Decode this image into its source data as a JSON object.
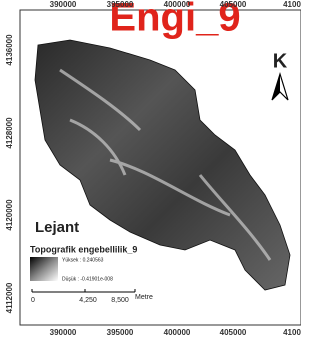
{
  "title": "Engi_9",
  "north": "K",
  "top_labels": [
    "390000",
    "395000",
    "400000",
    "405000",
    "4100"
  ],
  "bottom_labels": [
    "390000",
    "395000",
    "400000",
    "405000",
    "4100"
  ],
  "left_labels": [
    "4136000",
    "4128000",
    "4120000",
    "4112000"
  ],
  "legend": {
    "heading": "Lejant",
    "layer": "Topografik engebellilik_9",
    "high": "Yüksek : 0.240563",
    "low": "Düşük : -0.41901e-008"
  },
  "scale": {
    "labels": [
      "0",
      "4,250",
      "8,500"
    ],
    "unit": "Metre"
  }
}
